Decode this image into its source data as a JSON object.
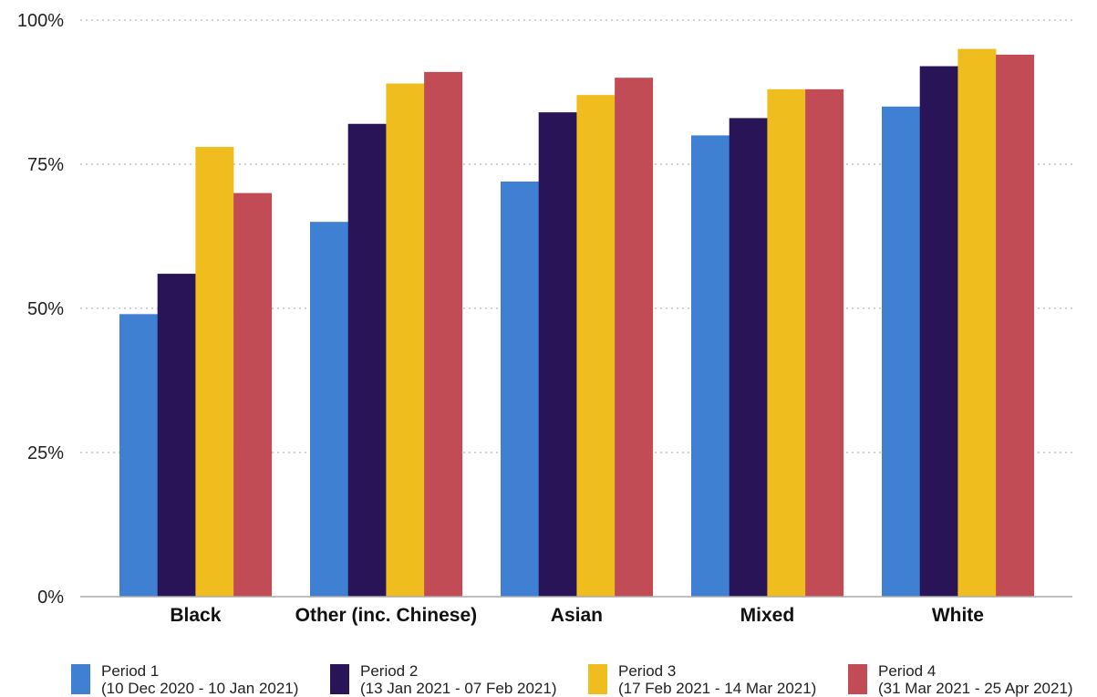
{
  "chart_data": {
    "type": "bar",
    "title": "",
    "xlabel": "",
    "ylabel": "",
    "ylim": [
      0,
      100
    ],
    "y_ticks": [
      {
        "value": 0,
        "label": "0%"
      },
      {
        "value": 25,
        "label": "25%"
      },
      {
        "value": 50,
        "label": "50%"
      },
      {
        "value": 75,
        "label": "75%"
      },
      {
        "value": 100,
        "label": "100%"
      }
    ],
    "grid": "horizontal dotted",
    "legend_position": "bottom",
    "categories": [
      "Black",
      "Other (inc. Chinese)",
      "Asian",
      "Mixed",
      "White"
    ],
    "series": [
      {
        "name": "Period 1",
        "subtitle": "(10 Dec 2020 - 10 Jan 2021)",
        "color": "#3f80d3",
        "values": [
          49,
          65,
          72,
          80,
          85
        ]
      },
      {
        "name": "Period 2",
        "subtitle": "(13 Jan 2021 - 07 Feb 2021)",
        "color": "#2a1458",
        "values": [
          56,
          82,
          84,
          83,
          92
        ]
      },
      {
        "name": "Period 3",
        "subtitle": "(17 Feb 2021 - 14 Mar 2021)",
        "color": "#f0bd1e",
        "values": [
          78,
          89,
          87,
          88,
          95
        ]
      },
      {
        "name": "Period 4",
        "subtitle": "(31 Mar 2021 - 25 Apr 2021)",
        "color": "#c24c55",
        "values": [
          70,
          91,
          90,
          88,
          94
        ]
      }
    ]
  }
}
